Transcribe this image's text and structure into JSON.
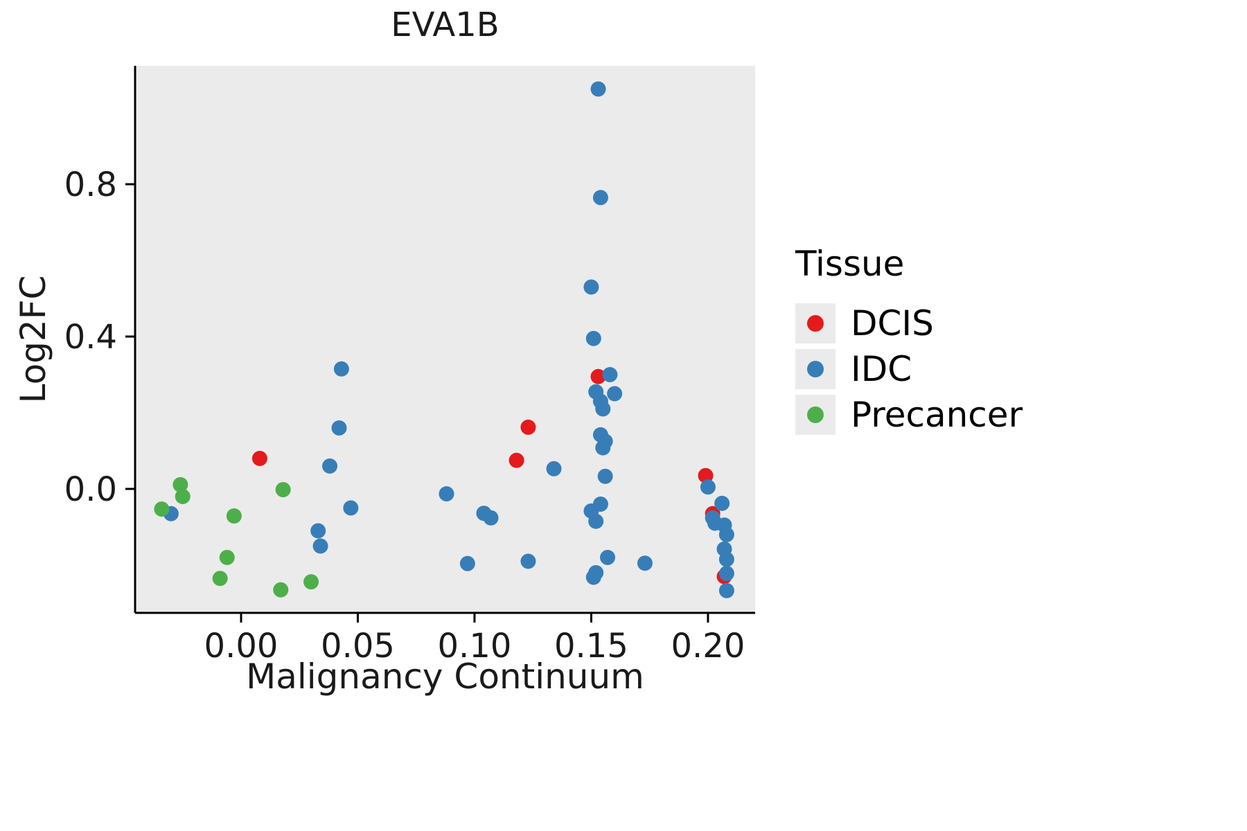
{
  "title": "EVA1B",
  "axes": {
    "x_label": "Malignancy Continuum",
    "y_label": "Log2FC"
  },
  "legend": {
    "title": "Tissue",
    "entries": [
      {
        "label": "DCIS",
        "color": "#e41a1c"
      },
      {
        "label": "IDC",
        "color": "#377eb8"
      },
      {
        "label": "Precancer",
        "color": "#4daf4a"
      }
    ]
  },
  "chart_data": {
    "type": "scatter",
    "title": "EVA1B",
    "xlabel": "Malignancy Continuum",
    "ylabel": "Log2FC",
    "xlim": [
      -0.0454,
      0.2202
    ],
    "ylim": [
      -0.3255,
      1.111
    ],
    "xticks": [
      0.0,
      0.05,
      0.1,
      0.15,
      0.2
    ],
    "xtick_labels": [
      "0.00",
      "0.05",
      "0.10",
      "0.15",
      "0.20"
    ],
    "yticks": [
      0.0,
      0.4,
      0.8
    ],
    "ytick_labels": [
      "0.0",
      "0.4",
      "0.8"
    ],
    "grid": false,
    "legend_position": "right",
    "panel_background": "#ebebeb",
    "point_radius": 11,
    "series": [
      {
        "name": "DCIS",
        "color": "#e41a1c",
        "points": [
          [
            0.008,
            0.08
          ],
          [
            0.118,
            0.075
          ],
          [
            0.123,
            0.162
          ],
          [
            0.153,
            0.295
          ],
          [
            0.199,
            0.035
          ],
          [
            0.202,
            -0.065
          ],
          [
            0.207,
            -0.23
          ]
        ]
      },
      {
        "name": "IDC",
        "color": "#377eb8",
        "points": [
          [
            -0.03,
            -0.065
          ],
          [
            0.043,
            0.315
          ],
          [
            0.042,
            0.16
          ],
          [
            0.038,
            0.06
          ],
          [
            0.047,
            -0.05
          ],
          [
            0.033,
            -0.11
          ],
          [
            0.034,
            -0.15
          ],
          [
            0.088,
            -0.013
          ],
          [
            0.097,
            -0.196
          ],
          [
            0.104,
            -0.064
          ],
          [
            0.107,
            -0.076
          ],
          [
            0.123,
            -0.19
          ],
          [
            0.134,
            0.053
          ],
          [
            0.153,
            1.05
          ],
          [
            0.154,
            0.765
          ],
          [
            0.15,
            0.53
          ],
          [
            0.151,
            0.395
          ],
          [
            0.152,
            0.255
          ],
          [
            0.154,
            0.23
          ],
          [
            0.155,
            0.21
          ],
          [
            0.158,
            0.3
          ],
          [
            0.16,
            0.25
          ],
          [
            0.154,
            0.142
          ],
          [
            0.156,
            0.125
          ],
          [
            0.155,
            0.108
          ],
          [
            0.156,
            0.033
          ],
          [
            0.15,
            -0.058
          ],
          [
            0.152,
            -0.085
          ],
          [
            0.154,
            -0.04
          ],
          [
            0.157,
            -0.18
          ],
          [
            0.152,
            -0.22
          ],
          [
            0.151,
            -0.232
          ],
          [
            0.173,
            -0.195
          ],
          [
            0.2,
            0.005
          ],
          [
            0.202,
            -0.076
          ],
          [
            0.203,
            -0.09
          ],
          [
            0.206,
            -0.038
          ],
          [
            0.207,
            -0.095
          ],
          [
            0.208,
            -0.12
          ],
          [
            0.207,
            -0.158
          ],
          [
            0.208,
            -0.185
          ],
          [
            0.208,
            -0.222
          ],
          [
            0.208,
            -0.267
          ]
        ]
      },
      {
        "name": "Precancer",
        "color": "#4daf4a",
        "points": [
          [
            -0.034,
            -0.053
          ],
          [
            -0.026,
            0.011
          ],
          [
            -0.025,
            -0.02
          ],
          [
            -0.003,
            -0.071
          ],
          [
            -0.006,
            -0.18
          ],
          [
            -0.009,
            -0.235
          ],
          [
            0.017,
            -0.265
          ],
          [
            0.018,
            -0.002
          ],
          [
            0.03,
            -0.244
          ]
        ]
      }
    ]
  }
}
